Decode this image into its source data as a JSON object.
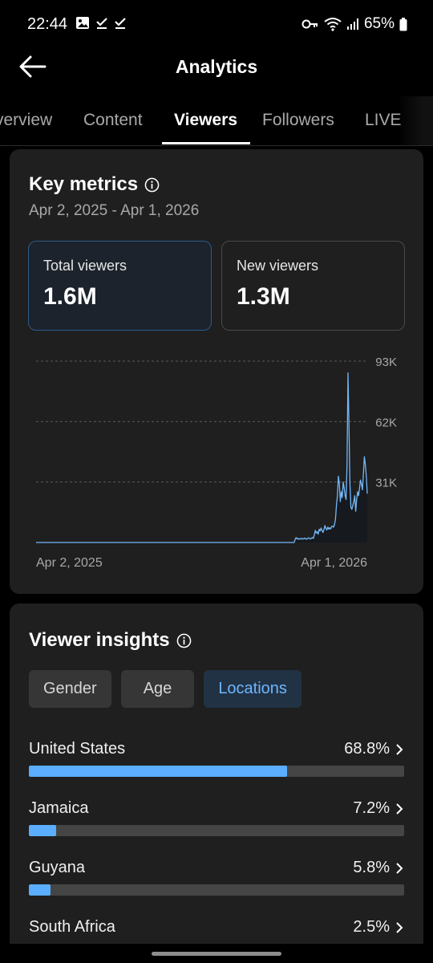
{
  "status_bar": {
    "time": "22:44",
    "left_icons": [
      "image-icon",
      "check-icon",
      "check-icon"
    ],
    "right_icons": [
      "vpn-key-icon",
      "wifi-icon",
      "signal-icon",
      "battery-icon"
    ],
    "battery": "65%"
  },
  "header": {
    "title": "Analytics",
    "back_icon": "arrow-left-icon"
  },
  "tabs": [
    {
      "label": "verview",
      "active": false
    },
    {
      "label": "Content",
      "active": false
    },
    {
      "label": "Viewers",
      "active": true
    },
    {
      "label": "Followers",
      "active": false
    },
    {
      "label": "LIVE",
      "active": false
    }
  ],
  "key_metrics": {
    "title": "Key metrics",
    "date_range": "Apr 2, 2025 - Apr 1, 2026",
    "metrics": [
      {
        "label": "Total viewers",
        "value": "1.6M",
        "selected": true
      },
      {
        "label": "New viewers",
        "value": "1.3M",
        "selected": false
      }
    ]
  },
  "chart_data": {
    "type": "line",
    "x_start_label": "Apr 2, 2025",
    "x_end_label": "Apr 1, 2026",
    "y_ticks": [
      "93K",
      "62K",
      "31K"
    ],
    "y_tick_values": [
      93000,
      62000,
      31000
    ],
    "ylim": [
      0,
      93000
    ],
    "grid": true,
    "color": "#74b8f7",
    "values": [
      0,
      0,
      0,
      0,
      0,
      0,
      0,
      0,
      0,
      0,
      0,
      0,
      0,
      0,
      0,
      0,
      0,
      0,
      0,
      0,
      0,
      0,
      0,
      0,
      0,
      0,
      0,
      0,
      0,
      0,
      0,
      0,
      0,
      0,
      0,
      0,
      0,
      0,
      0,
      0,
      0,
      0,
      0,
      0,
      0,
      0,
      0,
      0,
      0,
      0,
      0,
      0,
      0,
      0,
      0,
      0,
      0,
      0,
      0,
      0,
      0,
      0,
      0,
      0,
      0,
      0,
      0,
      0,
      0,
      0,
      0,
      0,
      0,
      0,
      0,
      0,
      0,
      0,
      0,
      0,
      0,
      0,
      0,
      0,
      0,
      0,
      0,
      0,
      0,
      0,
      0,
      0,
      0,
      0,
      0,
      0,
      0,
      0,
      0,
      0,
      0,
      0,
      0,
      0,
      0,
      0,
      0,
      0,
      0,
      0,
      0,
      0,
      0,
      0,
      0,
      0,
      0,
      0,
      0,
      0,
      0,
      0,
      0,
      0,
      0,
      0,
      0,
      0,
      0,
      0,
      0,
      0,
      0,
      0,
      0,
      0,
      0,
      0,
      0,
      0,
      0,
      0,
      0,
      0,
      0,
      0,
      0,
      0,
      0,
      0,
      0,
      0,
      0,
      0,
      0,
      0,
      0,
      0,
      0,
      0,
      0,
      0,
      0,
      0,
      0,
      0,
      0,
      0,
      0,
      0,
      0,
      0,
      0,
      0,
      0,
      0,
      0,
      0,
      0,
      0,
      0,
      0,
      0,
      0,
      0,
      0,
      0,
      0,
      0,
      0,
      0,
      0,
      0,
      0,
      0,
      0,
      0,
      0,
      0,
      0,
      0,
      0,
      0,
      0,
      0,
      0,
      0,
      0,
      0,
      0,
      0,
      0,
      0,
      0,
      0,
      0,
      0,
      0,
      0,
      0,
      0,
      0,
      0,
      0,
      0,
      0,
      0,
      0,
      0,
      0,
      0,
      0,
      0,
      0,
      0,
      0,
      0,
      0,
      0,
      0,
      0,
      0,
      0,
      0,
      0,
      0,
      0,
      0,
      0,
      0,
      0,
      0,
      0,
      0,
      0,
      0,
      0,
      0,
      0,
      0,
      0,
      0,
      0,
      0,
      0,
      0,
      0,
      0,
      0,
      1500,
      2500,
      1800,
      2200,
      1600,
      1900,
      2100,
      1700,
      2000,
      1800,
      2300,
      1900,
      1600,
      2100,
      2400,
      2000,
      1800,
      2200,
      2600,
      2100,
      3800,
      6200,
      4800,
      5500,
      4200,
      6800,
      5900,
      7400,
      6100,
      5200,
      6600,
      8700,
      7200,
      6400,
      7900,
      6800,
      7600,
      6900,
      8200,
      8400,
      7800,
      9200,
      12000,
      19000,
      24000,
      34000,
      30000,
      21000,
      26000,
      23000,
      31000,
      28000,
      24000,
      22000,
      40000,
      87000,
      60000,
      30000,
      18000,
      17000,
      19000,
      21000,
      24000,
      16000,
      22000,
      26000,
      24000,
      28000,
      32000,
      30000,
      27000,
      35000,
      44000,
      40000,
      34000,
      25000
    ]
  },
  "viewer_insights": {
    "title": "Viewer insights",
    "filters": [
      {
        "label": "Gender",
        "active": false
      },
      {
        "label": "Age",
        "active": false
      },
      {
        "label": "Locations",
        "active": true
      }
    ],
    "locations": [
      {
        "name": "United States",
        "percent_label": "68.8%",
        "share": 0.688
      },
      {
        "name": "Jamaica",
        "percent_label": "7.2%",
        "share": 0.072
      },
      {
        "name": "Guyana",
        "percent_label": "5.8%",
        "share": 0.058
      },
      {
        "name": "South Africa",
        "percent_label": "2.5%",
        "share": 0.025
      }
    ]
  },
  "colors": {
    "accent": "#5aaefd",
    "background": "#000000",
    "card": "#1f1f1f"
  }
}
